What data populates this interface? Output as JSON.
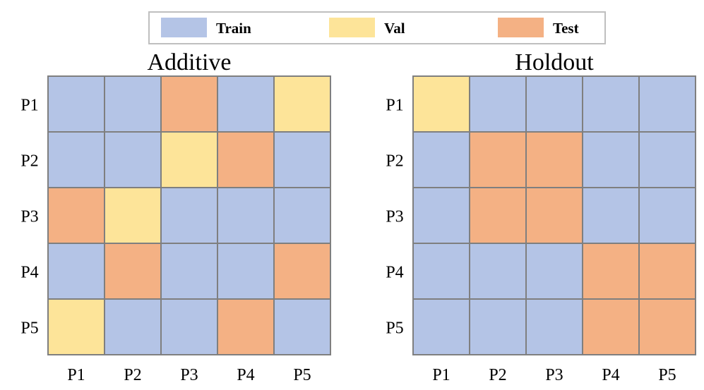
{
  "legend": [
    {
      "label": "Train",
      "color": "#b4c4e6"
    },
    {
      "label": "Val",
      "color": "#fde499"
    },
    {
      "label": "Test",
      "color": "#f4b184"
    }
  ],
  "colors": {
    "train": "#b4c4e6",
    "val": "#fde499",
    "test": "#f4b184",
    "grid": "#7f7f7f",
    "legend_border": "#bfbfbf"
  },
  "panels": [
    {
      "title": "Additive",
      "rows": [
        "P1",
        "P2",
        "P3",
        "P4",
        "P5"
      ],
      "cols": [
        "P1",
        "P2",
        "P3",
        "P4",
        "P5"
      ],
      "cells": [
        [
          "train",
          "train",
          "test",
          "train",
          "val"
        ],
        [
          "train",
          "train",
          "val",
          "test",
          "train"
        ],
        [
          "test",
          "val",
          "train",
          "train",
          "train"
        ],
        [
          "train",
          "test",
          "train",
          "train",
          "test"
        ],
        [
          "val",
          "train",
          "train",
          "test",
          "train"
        ]
      ]
    },
    {
      "title": "Holdout",
      "rows": [
        "P1",
        "P2",
        "P3",
        "P4",
        "P5"
      ],
      "cols": [
        "P1",
        "P2",
        "P3",
        "P4",
        "P5"
      ],
      "cells": [
        [
          "val",
          "train",
          "train",
          "train",
          "train"
        ],
        [
          "train",
          "test",
          "test",
          "train",
          "train"
        ],
        [
          "train",
          "test",
          "test",
          "train",
          "train"
        ],
        [
          "train",
          "train",
          "train",
          "test",
          "test"
        ],
        [
          "train",
          "train",
          "train",
          "test",
          "test"
        ]
      ]
    }
  ]
}
